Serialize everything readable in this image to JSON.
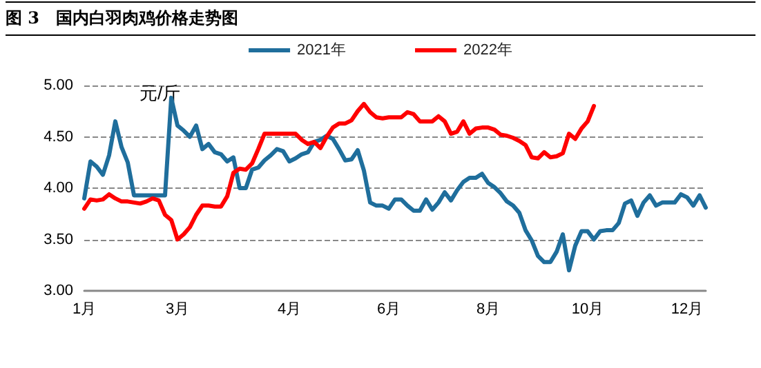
{
  "chart_data": {
    "type": "line",
    "title": "图 3　国内白羽肉鸡价格走势图",
    "ylabel": "元/斤",
    "categories": [
      "1月",
      null,
      null,
      null,
      null,
      null,
      null,
      null,
      null,
      null,
      null,
      null,
      null,
      null,
      null,
      "3月",
      null,
      null,
      null,
      null,
      null,
      null,
      null,
      null,
      null,
      null,
      null,
      null,
      null,
      null,
      null,
      null,
      null,
      "4月",
      null,
      null,
      null,
      null,
      null,
      null,
      null,
      null,
      null,
      null,
      null,
      null,
      null,
      null,
      null,
      "6月",
      null,
      null,
      null,
      null,
      null,
      null,
      null,
      null,
      null,
      null,
      null,
      null,
      null,
      null,
      null,
      "8月",
      null,
      null,
      null,
      null,
      null,
      null,
      null,
      null,
      null,
      null,
      null,
      null,
      null,
      null,
      null,
      "10月",
      null,
      null,
      null,
      null,
      null,
      null,
      null,
      null,
      null,
      null,
      null,
      null,
      null,
      null,
      null,
      "12月",
      null,
      null,
      null
    ],
    "ylim": [
      3,
      5
    ],
    "yticks": [
      {
        "value": 3,
        "label": "3.00"
      },
      {
        "value": 3.5,
        "label": "3.50"
      },
      {
        "value": 4,
        "label": "4.00"
      },
      {
        "value": 4.5,
        "label": "4.50"
      },
      {
        "value": 5,
        "label": "5.00"
      }
    ],
    "grid": "y",
    "legend": "top",
    "marker": "none",
    "line_style": "solid",
    "series": [
      {
        "name": "2021年",
        "color": "#1f6e9c",
        "values": [
          3.9,
          4.26,
          4.21,
          4.13,
          4.32,
          4.65,
          4.4,
          4.25,
          3.93,
          3.93,
          3.93,
          3.93,
          3.93,
          3.93,
          4.88,
          4.61,
          4.56,
          4.5,
          4.61,
          4.38,
          4.43,
          4.35,
          4.33,
          4.26,
          4.3,
          4.0,
          4.0,
          4.18,
          4.2,
          4.27,
          4.32,
          4.38,
          4.36,
          4.26,
          4.29,
          4.33,
          4.35,
          4.45,
          4.47,
          4.51,
          4.48,
          4.38,
          4.27,
          4.28,
          4.37,
          4.17,
          3.86,
          3.83,
          3.83,
          3.8,
          3.89,
          3.89,
          3.83,
          3.78,
          3.78,
          3.89,
          3.79,
          3.86,
          3.96,
          3.88,
          3.98,
          4.06,
          4.1,
          4.1,
          4.14,
          4.05,
          4.01,
          3.95,
          3.87,
          3.83,
          3.76,
          3.59,
          3.49,
          3.34,
          3.28,
          3.28,
          3.38,
          3.55,
          3.2,
          3.44,
          3.58,
          3.58,
          3.5,
          3.58,
          3.59,
          3.59,
          3.66,
          3.85,
          3.88,
          3.73,
          3.86,
          3.93,
          3.83,
          3.86,
          3.86,
          3.86,
          3.94,
          3.91,
          3.83,
          3.93,
          3.81
        ]
      },
      {
        "name": "2022年",
        "color": "#ff0000",
        "values": [
          3.8,
          3.89,
          3.88,
          3.89,
          3.94,
          3.9,
          3.87,
          3.87,
          3.86,
          3.85,
          3.87,
          3.9,
          3.88,
          3.74,
          3.69,
          3.5,
          3.55,
          3.62,
          3.74,
          3.83,
          3.83,
          3.82,
          3.82,
          3.92,
          4.15,
          4.19,
          4.18,
          4.24,
          4.38,
          4.53,
          4.53,
          4.53,
          4.53,
          4.53,
          4.53,
          4.47,
          4.43,
          4.45,
          4.39,
          4.5,
          4.59,
          4.63,
          4.63,
          4.66,
          4.75,
          4.82,
          4.74,
          4.69,
          4.68,
          4.69,
          4.69,
          4.69,
          4.74,
          4.72,
          4.65,
          4.65,
          4.65,
          4.7,
          4.65,
          4.53,
          4.55,
          4.65,
          4.53,
          4.58,
          4.59,
          4.59,
          4.57,
          4.52,
          4.51,
          4.49,
          4.46,
          4.42,
          4.3,
          4.29,
          4.35,
          4.3,
          4.31,
          4.34,
          4.53,
          4.48,
          4.58,
          4.65,
          4.8,
          null,
          null,
          null,
          null,
          null,
          null,
          null,
          null,
          null,
          null,
          null,
          null,
          null,
          null,
          null,
          null,
          null,
          null
        ]
      }
    ]
  }
}
